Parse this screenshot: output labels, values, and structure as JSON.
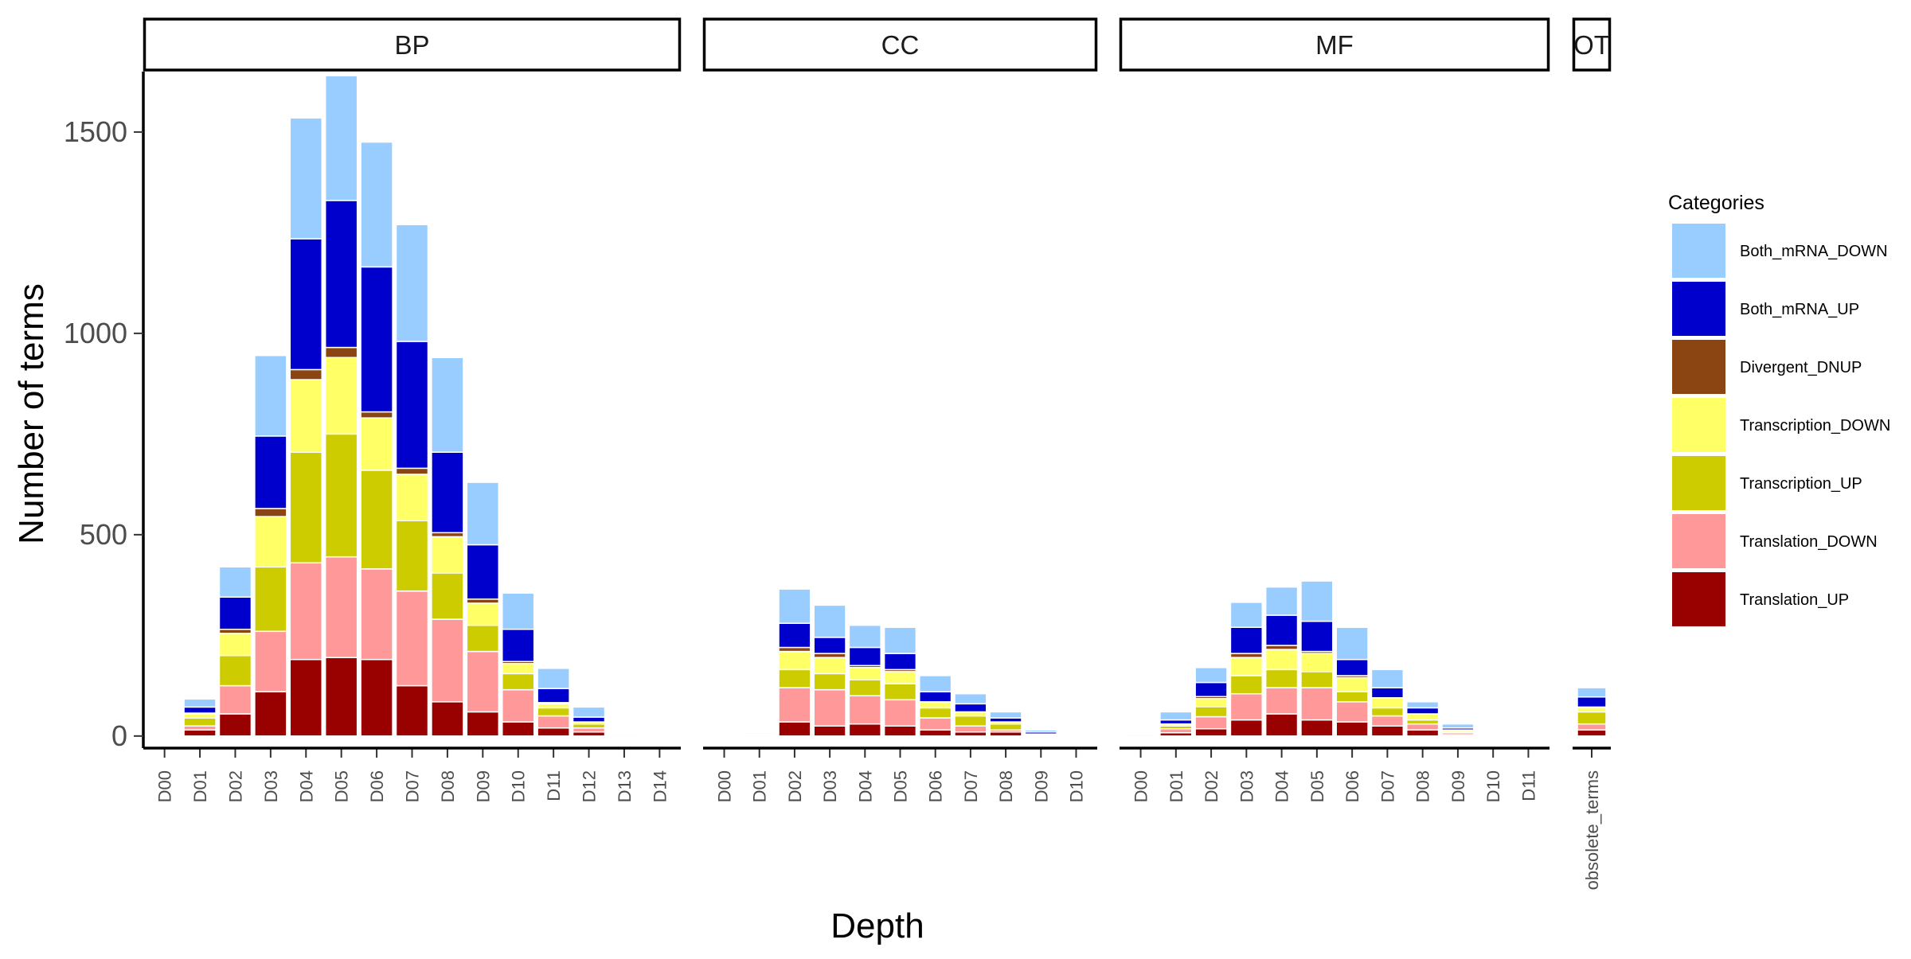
{
  "chart_data": {
    "type": "bar",
    "stacked": true,
    "facet_layout": "columns",
    "xlabel": "Depth",
    "ylabel": "Number of terms",
    "ylim": [
      -30,
      1650
    ],
    "yticks": [
      0,
      500,
      1000,
      1500
    ],
    "grid": false,
    "legend_position": "right",
    "legend": {
      "title": "Categories",
      "entries": [
        {
          "name": "Both_mRNA_DOWN",
          "color": "#99CCFF"
        },
        {
          "name": "Both_mRNA_UP",
          "color": "#0000CC"
        },
        {
          "name": "Divergent_DNUP",
          "color": "#8B4513"
        },
        {
          "name": "Transcription_DOWN",
          "color": "#FFFF66"
        },
        {
          "name": "Transcription_UP",
          "color": "#CCCC00"
        },
        {
          "name": "Translation_DOWN",
          "color": "#FF9999"
        },
        {
          "name": "Translation_UP",
          "color": "#990000"
        }
      ]
    },
    "stack_order_bottom_to_top": [
      "Translation_UP",
      "Translation_DOWN",
      "Transcription_UP",
      "Transcription_DOWN",
      "Divergent_DNUP",
      "Both_mRNA_UP",
      "Both_mRNA_DOWN"
    ],
    "facets": [
      {
        "label": "BP",
        "categories": [
          "D00",
          "D01",
          "D02",
          "D03",
          "D04",
          "D05",
          "D06",
          "D07",
          "D08",
          "D09",
          "D10",
          "D11",
          "D12",
          "D13",
          "D14"
        ],
        "series": [
          {
            "name": "Translation_UP",
            "values": [
              1,
              15,
              55,
              110,
              190,
              195,
              190,
              125,
              85,
              60,
              35,
              20,
              10,
              3,
              0
            ]
          },
          {
            "name": "Translation_DOWN",
            "values": [
              1,
              10,
              70,
              150,
              240,
              250,
              225,
              235,
              205,
              150,
              80,
              30,
              10,
              2,
              0
            ]
          },
          {
            "name": "Transcription_UP",
            "values": [
              0,
              20,
              75,
              160,
              275,
              305,
              245,
              175,
              115,
              65,
              40,
              20,
              10,
              2,
              0
            ]
          },
          {
            "name": "Transcription_DOWN",
            "values": [
              0,
              10,
              55,
              125,
              180,
              190,
              130,
              115,
              90,
              55,
              25,
              10,
              5,
              1,
              0
            ]
          },
          {
            "name": "Divergent_DNUP",
            "values": [
              0,
              2,
              10,
              20,
              25,
              25,
              15,
              15,
              10,
              10,
              5,
              3,
              0,
              0,
              0
            ]
          },
          {
            "name": "Both_mRNA_UP",
            "values": [
              1,
              15,
              80,
              180,
              325,
              365,
              360,
              315,
              200,
              135,
              80,
              35,
              12,
              2,
              0
            ]
          },
          {
            "name": "Both_mRNA_DOWN",
            "values": [
              0,
              20,
              75,
              200,
              300,
              310,
              310,
              290,
              235,
              155,
              90,
              50,
              25,
              2,
              0
            ]
          }
        ]
      },
      {
        "label": "CC",
        "categories": [
          "D00",
          "D01",
          "D02",
          "D03",
          "D04",
          "D05",
          "D06",
          "D07",
          "D08",
          "D09",
          "D10"
        ],
        "series": [
          {
            "name": "Translation_UP",
            "values": [
              0,
              2,
              35,
              25,
              30,
              25,
              15,
              10,
              10,
              2,
              0
            ]
          },
          {
            "name": "Translation_DOWN",
            "values": [
              0,
              2,
              85,
              90,
              70,
              65,
              30,
              15,
              5,
              1,
              0
            ]
          },
          {
            "name": "Transcription_UP",
            "values": [
              0,
              1,
              45,
              40,
              40,
              40,
              25,
              25,
              15,
              1,
              0
            ]
          },
          {
            "name": "Transcription_DOWN",
            "values": [
              2,
              1,
              45,
              40,
              30,
              30,
              15,
              10,
              5,
              1,
              0
            ]
          },
          {
            "name": "Divergent_DNUP",
            "values": [
              0,
              0,
              10,
              10,
              5,
              5,
              0,
              0,
              0,
              0,
              0
            ]
          },
          {
            "name": "Both_mRNA_UP",
            "values": [
              1,
              3,
              60,
              40,
              45,
              40,
              25,
              20,
              10,
              5,
              0
            ]
          },
          {
            "name": "Both_mRNA_DOWN",
            "values": [
              1,
              1,
              85,
              80,
              55,
              65,
              40,
              25,
              15,
              5,
              0
            ]
          }
        ]
      },
      {
        "label": "MF",
        "categories": [
          "D00",
          "D01",
          "D02",
          "D03",
          "D04",
          "D05",
          "D06",
          "D07",
          "D08",
          "D09",
          "D10",
          "D11"
        ],
        "series": [
          {
            "name": "Translation_UP",
            "values": [
              0,
              8,
              18,
              40,
              55,
              40,
              35,
              25,
              15,
              3,
              1,
              0
            ]
          },
          {
            "name": "Translation_DOWN",
            "values": [
              0,
              10,
              30,
              65,
              65,
              80,
              50,
              25,
              15,
              5,
              1,
              1
            ]
          },
          {
            "name": "Transcription_UP",
            "values": [
              0,
              7,
              25,
              45,
              45,
              40,
              25,
              20,
              10,
              3,
              1,
              0
            ]
          },
          {
            "name": "Transcription_DOWN",
            "values": [
              0,
              5,
              20,
              45,
              50,
              45,
              35,
              25,
              15,
              4,
              1,
              0
            ]
          },
          {
            "name": "Divergent_DNUP",
            "values": [
              0,
              0,
              5,
              10,
              10,
              5,
              5,
              0,
              0,
              0,
              0,
              0
            ]
          },
          {
            "name": "Both_mRNA_UP",
            "values": [
              3,
              10,
              35,
              65,
              75,
              75,
              40,
              25,
              15,
              5,
              1,
              0
            ]
          },
          {
            "name": "Both_mRNA_DOWN",
            "values": [
              0,
              20,
              37,
              62,
              70,
              100,
              80,
              45,
              15,
              10,
              3,
              1
            ]
          }
        ]
      },
      {
        "label": "OT",
        "categories": [
          "obsolete_terms"
        ],
        "series": [
          {
            "name": "Translation_UP",
            "values": [
              15
            ]
          },
          {
            "name": "Translation_DOWN",
            "values": [
              15
            ]
          },
          {
            "name": "Transcription_UP",
            "values": [
              30
            ]
          },
          {
            "name": "Transcription_DOWN",
            "values": [
              10
            ]
          },
          {
            "name": "Divergent_DNUP",
            "values": [
              2
            ]
          },
          {
            "name": "Both_mRNA_UP",
            "values": [
              25
            ]
          },
          {
            "name": "Both_mRNA_DOWN",
            "values": [
              23
            ]
          }
        ]
      }
    ]
  }
}
